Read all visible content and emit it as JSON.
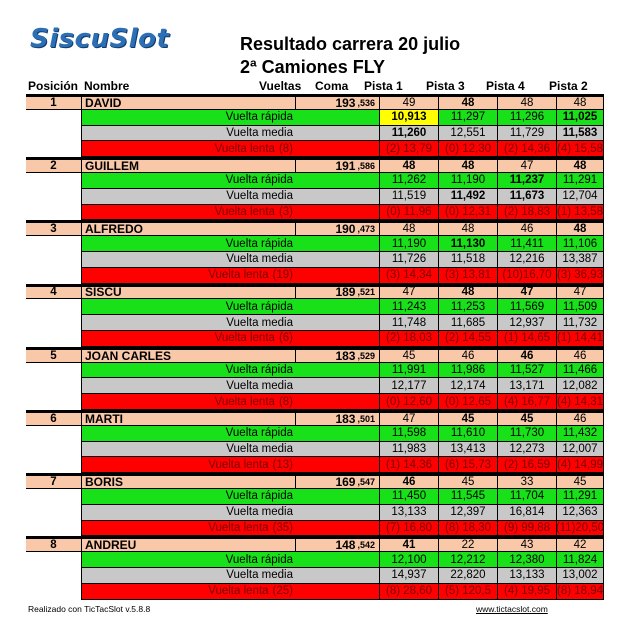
{
  "logo": "SiscuSlot",
  "title": "Resultado carrera  20 julio",
  "subtitle": "2ª Camiones FLY",
  "headers": {
    "pos": "Posición",
    "name": "Nombre",
    "laps": "Vueltas",
    "coma": "Coma",
    "p1": "Pista 1",
    "p2": "Pista 3",
    "p3": "Pista 4",
    "p4": "Pista 2"
  },
  "labels": {
    "fast": "Vuelta rápida",
    "avg": "Vuelta media",
    "slow_prefix": "Vuelta   lenta"
  },
  "races": [
    {
      "pos": "1",
      "name": "DAVID",
      "laps": "193",
      "coma": ",536",
      "lane_laps": [
        "49",
        "48",
        "48",
        "48"
      ],
      "fast": [
        "10,913",
        "11,297",
        "11,296",
        "11,025"
      ],
      "avg": [
        "11,260",
        "12,551",
        "11,729",
        "11,583"
      ],
      "slow_count": "(8)",
      "slow": [
        "(2) 13,79",
        "(0) 12,30",
        "(2) 14,36",
        "(4) 15,58"
      ]
    },
    {
      "pos": "2",
      "name": "GUILLEM",
      "laps": "191",
      "coma": ",586",
      "lane_laps": [
        "48",
        "48",
        "47",
        "48"
      ],
      "fast": [
        "11,262",
        "11,190",
        "11,237",
        "11,291"
      ],
      "avg": [
        "11,519",
        "11,492",
        "11,673",
        "12,704"
      ],
      "slow_count": "(3)",
      "slow": [
        "(0) 11,96",
        "(0) 12,31",
        "(2) 18,83",
        "(1) 13,58"
      ]
    },
    {
      "pos": "3",
      "name": "ALFREDO",
      "laps": "190",
      "coma": ",473",
      "lane_laps": [
        "48",
        "48",
        "46",
        "48"
      ],
      "fast": [
        "11,190",
        "11,130",
        "11,411",
        "11,106"
      ],
      "avg": [
        "11,726",
        "11,518",
        "12,216",
        "13,387"
      ],
      "slow_count": "(19)",
      "slow": [
        "(3) 14,34",
        "(3) 13,81",
        "(10)16,70",
        "(3) 36,93"
      ]
    },
    {
      "pos": "4",
      "name": "SISCU",
      "laps": "189",
      "coma": ",521",
      "lane_laps": [
        "47",
        "48",
        "47",
        "47"
      ],
      "fast": [
        "11,243",
        "11,253",
        "11,569",
        "11,509"
      ],
      "avg": [
        "11,748",
        "11,685",
        "12,937",
        "11,732"
      ],
      "slow_count": "(6)",
      "slow": [
        "(2) 18,03",
        "(2) 14,55",
        "(1) 14,65",
        "(1) 14,41"
      ]
    },
    {
      "pos": "5",
      "name": "JOAN CARLES",
      "laps": "183",
      "coma": ",529",
      "lane_laps": [
        "45",
        "46",
        "46",
        "46"
      ],
      "fast": [
        "11,991",
        "11,986",
        "11,527",
        "11,466"
      ],
      "avg": [
        "12,177",
        "12,174",
        "13,171",
        "12,082"
      ],
      "slow_count": "(8)",
      "slow": [
        "(0) 12,60",
        "(0) 12,65",
        "(4) 16,77",
        "(4) 14,31"
      ]
    },
    {
      "pos": "6",
      "name": "MARTI",
      "laps": "183",
      "coma": ",501",
      "lane_laps": [
        "47",
        "45",
        "45",
        "46"
      ],
      "fast": [
        "11,598",
        "11,610",
        "11,730",
        "11,432"
      ],
      "avg": [
        "11,983",
        "13,413",
        "12,273",
        "12,007"
      ],
      "slow_count": "(13)",
      "slow": [
        "(1) 14,36",
        "(6) 15,73",
        "(2) 16,59",
        "(4) 14,99"
      ]
    },
    {
      "pos": "7",
      "name": "BORIS",
      "laps": "169",
      "coma": ",547",
      "lane_laps": [
        "46",
        "45",
        "33",
        "45"
      ],
      "fast": [
        "11,450",
        "11,545",
        "11,704",
        "11,291"
      ],
      "avg": [
        "13,133",
        "12,397",
        "16,814",
        "12,363"
      ],
      "slow_count": "(35)",
      "slow": [
        "(7) 16,80",
        "(8) 18,30",
        "(9) 99,88",
        "(11)20,50"
      ]
    },
    {
      "pos": "8",
      "name": "ANDREU",
      "laps": "148",
      "coma": ",542",
      "lane_laps": [
        "41",
        "22",
        "43",
        "42"
      ],
      "fast": [
        "12,100",
        "12,212",
        "12,380",
        "11,824"
      ],
      "avg": [
        "14,937",
        "22,820",
        "13,133",
        "13,002"
      ],
      "slow_count": "(25)",
      "slow": [
        "(8) 28,60",
        "(5) 120,5",
        "(4) 19,95",
        "(8) 18,94"
      ]
    }
  ],
  "bold_cells": {
    "0": {
      "lane_laps": [
        1
      ],
      "fast": [
        0,
        3
      ],
      "avg": [
        0,
        3
      ]
    },
    "1": {
      "lane_laps": [
        0,
        1,
        3
      ],
      "fast": [
        2
      ],
      "avg": [
        1,
        2
      ]
    },
    "2": {
      "lane_laps": [
        3
      ],
      "fast": [
        1
      ],
      "avg": []
    },
    "3": {
      "lane_laps": [
        1,
        2
      ],
      "fast": [],
      "avg": []
    },
    "4": {
      "lane_laps": [
        2
      ],
      "fast": [],
      "avg": []
    },
    "5": {
      "lane_laps": [
        1,
        2
      ],
      "fast": [],
      "avg": []
    },
    "6": {
      "lane_laps": [
        0
      ],
      "fast": [],
      "avg": []
    },
    "7": {
      "lane_laps": [
        0
      ],
      "fast": [],
      "avg": []
    }
  },
  "highlight_cell": {
    "race": 0,
    "row": "fast",
    "lane": 0,
    "color": "#ffff00"
  },
  "colors": {
    "header_row": "#f9c8a8",
    "fast_row": "#19e119",
    "avg_row": "#c8c8c8",
    "slow_row": "#ff0000",
    "logo": "#2d6fb5"
  },
  "footer": {
    "left": "Realizado con TicTacSlot v.5.8.8",
    "right": "www.tictacslot.com"
  }
}
